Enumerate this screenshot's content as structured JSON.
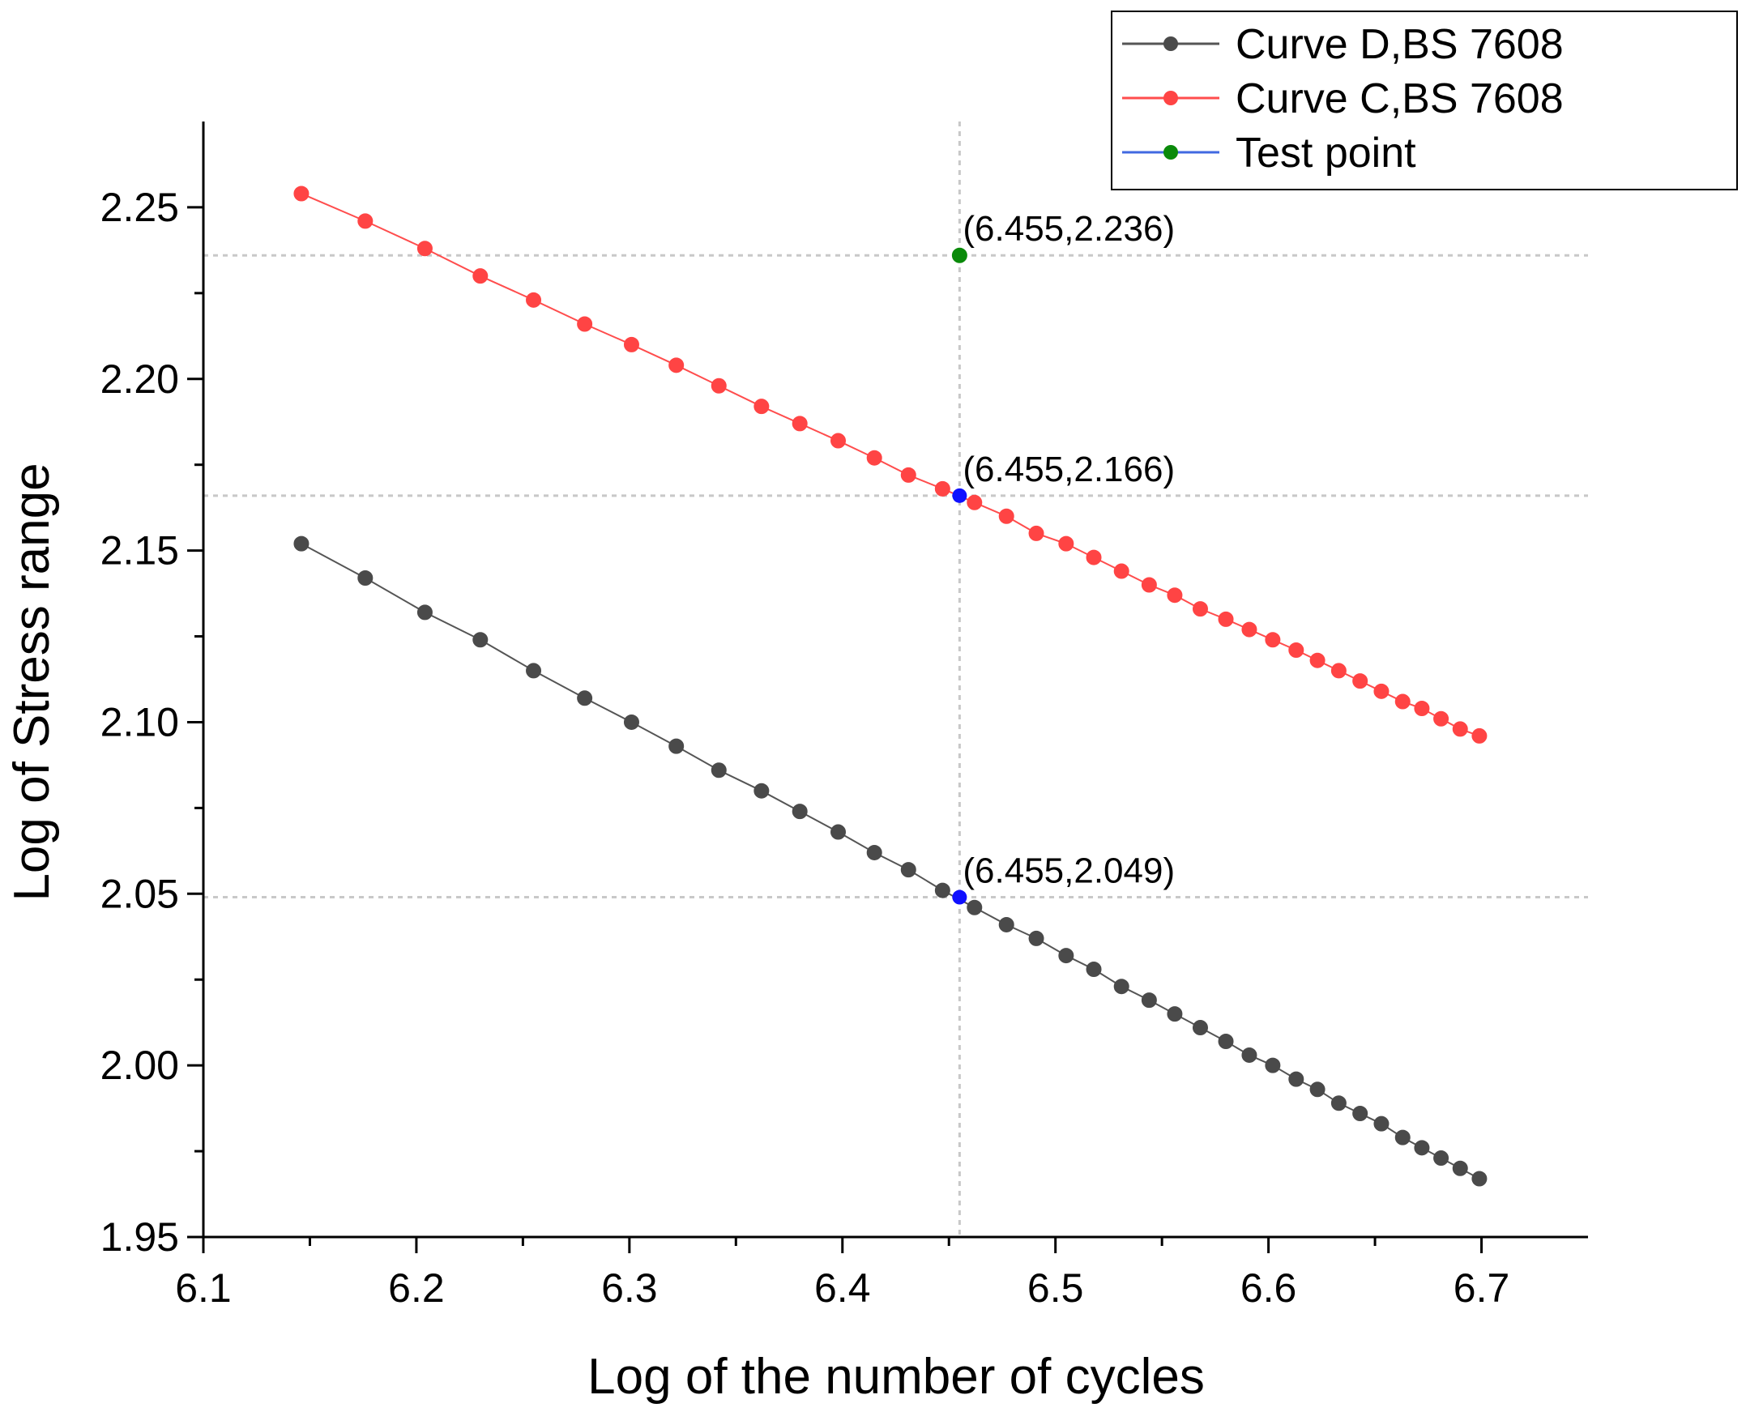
{
  "chart_data": {
    "type": "line",
    "title": "",
    "xlabel": "Log of the number of cycles",
    "ylabel": "Log of Stress range",
    "xlim": [
      6.1,
      6.75
    ],
    "ylim": [
      1.95,
      2.275
    ],
    "xticks": [
      6.1,
      6.2,
      6.3,
      6.4,
      6.5,
      6.6,
      6.7
    ],
    "xtick_labels": [
      "6.1",
      "6.2",
      "6.3",
      "6.4",
      "6.5",
      "6.6",
      "6.7"
    ],
    "yticks": [
      1.95,
      2.0,
      2.05,
      2.1,
      2.15,
      2.2,
      2.25
    ],
    "ytick_labels": [
      "1.95",
      "2.00",
      "2.05",
      "2.10",
      "2.15",
      "2.20",
      "2.25"
    ],
    "grid": false,
    "legend_position": "top-right",
    "series": [
      {
        "name": "Curve D,BS 7608",
        "color": "#555555",
        "marker_color": "#4a4a4a",
        "x": [
          6.146,
          6.176,
          6.204,
          6.23,
          6.255,
          6.279,
          6.301,
          6.322,
          6.342,
          6.362,
          6.38,
          6.398,
          6.415,
          6.431,
          6.447,
          6.462,
          6.477,
          6.491,
          6.505,
          6.518,
          6.531,
          6.544,
          6.556,
          6.568,
          6.58,
          6.591,
          6.602,
          6.613,
          6.623,
          6.633,
          6.643,
          6.653,
          6.663,
          6.672,
          6.681,
          6.69,
          6.699
        ],
        "y": [
          2.152,
          2.142,
          2.132,
          2.124,
          2.115,
          2.107,
          2.1,
          2.093,
          2.086,
          2.08,
          2.074,
          2.068,
          2.062,
          2.057,
          2.051,
          2.046,
          2.041,
          2.037,
          2.032,
          2.028,
          2.023,
          2.019,
          2.015,
          2.011,
          2.007,
          2.003,
          2.0,
          1.996,
          1.993,
          1.989,
          1.986,
          1.983,
          1.979,
          1.976,
          1.973,
          1.97,
          1.967
        ]
      },
      {
        "name": "Curve C,BS 7608",
        "color": "#ff4d4d",
        "marker_color": "#ff4444",
        "x": [
          6.146,
          6.176,
          6.204,
          6.23,
          6.255,
          6.279,
          6.301,
          6.322,
          6.342,
          6.362,
          6.38,
          6.398,
          6.415,
          6.431,
          6.447,
          6.462,
          6.477,
          6.491,
          6.505,
          6.518,
          6.531,
          6.544,
          6.556,
          6.568,
          6.58,
          6.591,
          6.602,
          6.613,
          6.623,
          6.633,
          6.643,
          6.653,
          6.663,
          6.672,
          6.681,
          6.69,
          6.699
        ],
        "y": [
          2.254,
          2.246,
          2.238,
          2.23,
          2.223,
          2.216,
          2.21,
          2.204,
          2.198,
          2.192,
          2.187,
          2.182,
          2.177,
          2.172,
          2.168,
          2.164,
          2.16,
          2.155,
          2.152,
          2.148,
          2.144,
          2.14,
          2.137,
          2.133,
          2.13,
          2.127,
          2.124,
          2.121,
          2.118,
          2.115,
          2.112,
          2.109,
          2.106,
          2.104,
          2.101,
          2.098,
          2.096
        ]
      },
      {
        "name": "Test point",
        "color": "#4169e1",
        "marker_color": "#0a8a0a",
        "x": [
          6.455
        ],
        "y": [
          2.236
        ]
      }
    ],
    "highlight_points": [
      {
        "x": 6.455,
        "y": 2.166,
        "color": "#1010ff"
      },
      {
        "x": 6.455,
        "y": 2.049,
        "color": "#1010ff"
      }
    ],
    "reference_lines": {
      "vertical_x": [
        6.455
      ],
      "horizontal_y": [
        2.236,
        2.166,
        2.049
      ],
      "color": "#c8c8c8"
    },
    "annotations": [
      {
        "text": "(6.455,2.236)",
        "x": 6.455,
        "y": 2.236
      },
      {
        "text": "(6.455,2.166)",
        "x": 6.455,
        "y": 2.166
      },
      {
        "text": "(6.455,2.049)",
        "x": 6.455,
        "y": 2.049
      }
    ]
  }
}
